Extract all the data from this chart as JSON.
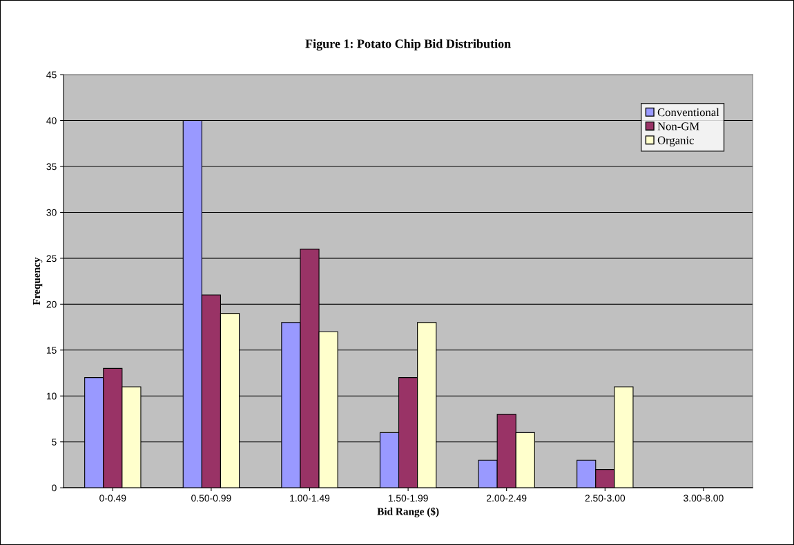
{
  "chart_data": {
    "type": "bar",
    "title": "Figure 1: Potato Chip Bid Distribution",
    "xlabel": "Bid Range ($)",
    "ylabel": "Frequency",
    "categories": [
      "0-0.49",
      "0.50-0.99",
      "1.00-1.49",
      "1.50-1.99",
      "2.00-2.49",
      "2.50-3.00",
      "3.00-8.00"
    ],
    "series": [
      {
        "name": "Conventional",
        "color": "#9999ff",
        "values": [
          12,
          40,
          18,
          6,
          3,
          3,
          null
        ]
      },
      {
        "name": "Non-GM",
        "color": "#993366",
        "values": [
          13,
          21,
          26,
          12,
          8,
          2,
          null
        ]
      },
      {
        "name": "Organic",
        "color": "#ffffcc",
        "values": [
          11,
          19,
          17,
          18,
          6,
          11,
          null
        ]
      }
    ],
    "ylim": [
      0,
      45
    ],
    "yticks": [
      0,
      5,
      10,
      15,
      20,
      25,
      30,
      35,
      40,
      45
    ],
    "grid": "y",
    "legend": "top right"
  }
}
